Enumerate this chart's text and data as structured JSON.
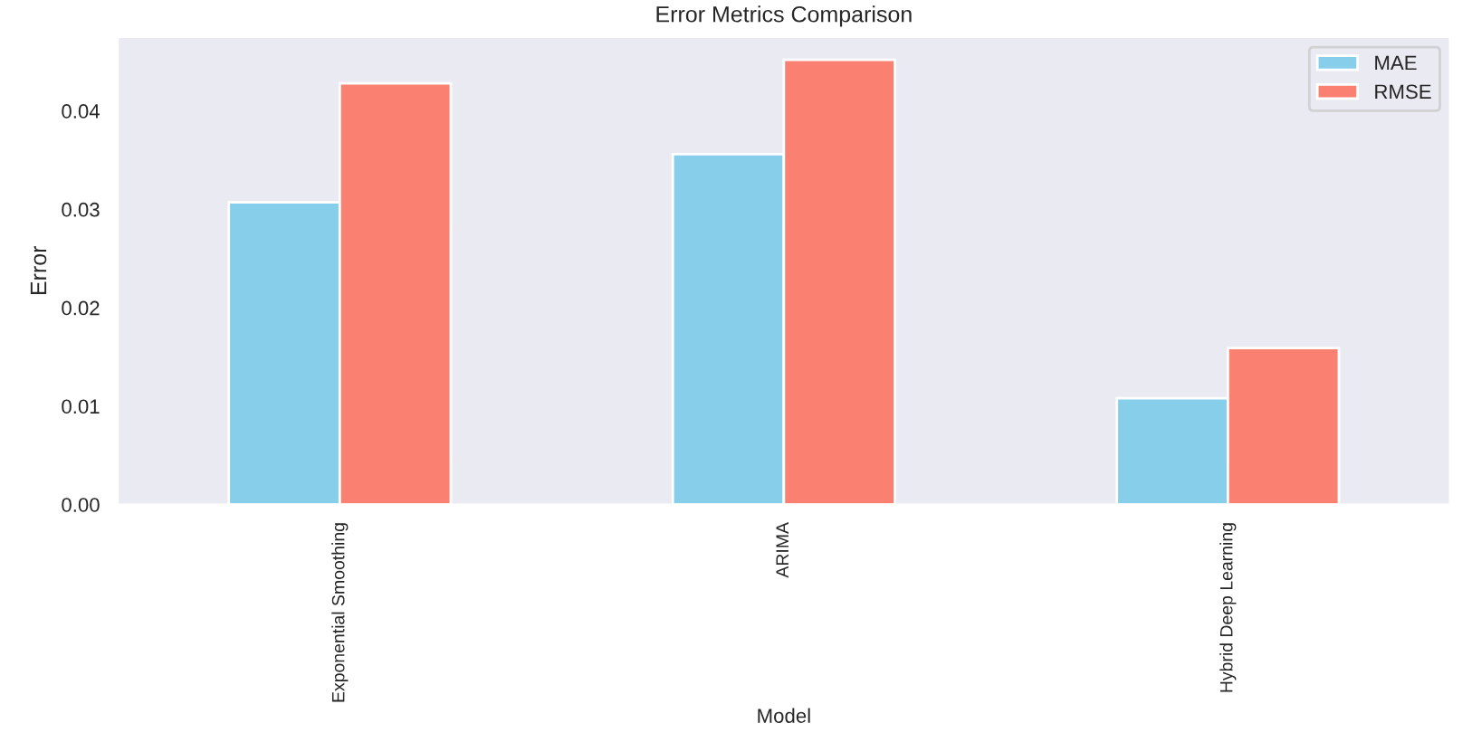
{
  "chart_data": {
    "type": "bar",
    "title": "Error Metrics Comparison",
    "xlabel": "Model",
    "ylabel": "Error",
    "categories": [
      "Exponential Smoothing",
      "ARIMA",
      "Hybrid Deep Learning"
    ],
    "series": [
      {
        "name": "MAE",
        "color": "#87ceeb",
        "values": [
          0.0307,
          0.0356,
          0.0108
        ]
      },
      {
        "name": "RMSE",
        "color": "#fa8072",
        "values": [
          0.0428,
          0.0452,
          0.0159
        ]
      }
    ],
    "ylim": [
      0,
      0.0475
    ],
    "yticks": [
      {
        "value": 0,
        "label": "0.00"
      },
      {
        "value": 0.01,
        "label": "0.01"
      },
      {
        "value": 0.02,
        "label": "0.02"
      },
      {
        "value": 0.03,
        "label": "0.03"
      },
      {
        "value": 0.04,
        "label": "0.04"
      }
    ],
    "grid": false,
    "legend": "top right"
  }
}
